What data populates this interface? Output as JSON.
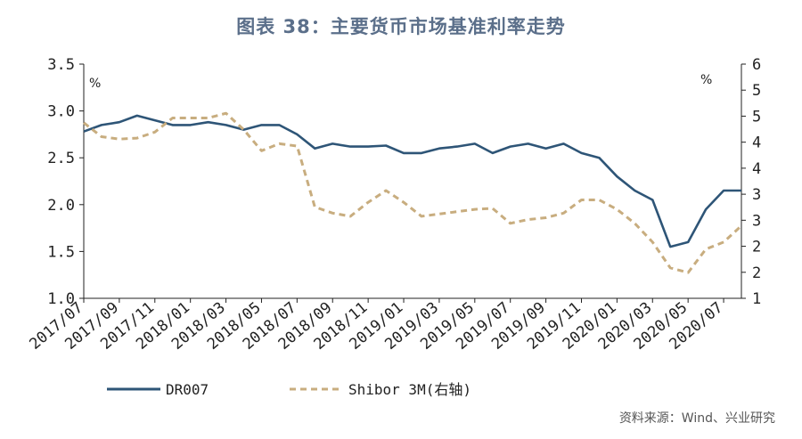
{
  "chart_data": {
    "type": "line",
    "title": "图表 38：主要货币市场基准利率走势",
    "left_unit": "%",
    "right_unit": "%",
    "x_tick_labels": [
      "2017/07",
      "2017/09",
      "2017/11",
      "2018/01",
      "2018/03",
      "2018/05",
      "2018/07",
      "2018/09",
      "2018/11",
      "2019/01",
      "2019/03",
      "2019/05",
      "2019/07",
      "2019/09",
      "2019/11",
      "2020/01",
      "2020/03",
      "2020/05",
      "2020/07"
    ],
    "y_left": {
      "ticks": [
        "1.0",
        "1.5",
        "2.0",
        "2.5",
        "3.0",
        "3.5"
      ],
      "lim": [
        1.0,
        3.5
      ]
    },
    "y_right": {
      "ticks": [
        "1",
        "2",
        "2",
        "3",
        "3",
        "4",
        "4",
        "5",
        "5",
        "6"
      ],
      "lim": [
        1.0,
        6.0
      ]
    },
    "x_range": [
      "2017-07",
      "2020-08"
    ],
    "series": [
      {
        "name": "DR007",
        "axis": "left",
        "color": "#2e5577",
        "style": "solid",
        "points": [
          [
            "2017-07",
            2.78
          ],
          [
            "2017-08",
            2.85
          ],
          [
            "2017-09",
            2.88
          ],
          [
            "2017-10",
            2.95
          ],
          [
            "2017-11",
            2.9
          ],
          [
            "2017-12",
            2.85
          ],
          [
            "2018-01",
            2.85
          ],
          [
            "2018-02",
            2.88
          ],
          [
            "2018-03",
            2.85
          ],
          [
            "2018-04",
            2.8
          ],
          [
            "2018-05",
            2.85
          ],
          [
            "2018-06",
            2.85
          ],
          [
            "2018-07",
            2.75
          ],
          [
            "2018-08",
            2.6
          ],
          [
            "2018-09",
            2.65
          ],
          [
            "2018-10",
            2.62
          ],
          [
            "2018-11",
            2.62
          ],
          [
            "2018-12",
            2.63
          ],
          [
            "2019-01",
            2.55
          ],
          [
            "2019-02",
            2.55
          ],
          [
            "2019-03",
            2.6
          ],
          [
            "2019-04",
            2.62
          ],
          [
            "2019-05",
            2.65
          ],
          [
            "2019-06",
            2.55
          ],
          [
            "2019-07",
            2.62
          ],
          [
            "2019-08",
            2.65
          ],
          [
            "2019-09",
            2.6
          ],
          [
            "2019-10",
            2.65
          ],
          [
            "2019-11",
            2.55
          ],
          [
            "2019-12",
            2.5
          ],
          [
            "2020-01",
            2.3
          ],
          [
            "2020-02",
            2.15
          ],
          [
            "2020-03",
            2.05
          ],
          [
            "2020-04",
            1.55
          ],
          [
            "2020-05",
            1.6
          ],
          [
            "2020-06",
            1.95
          ],
          [
            "2020-07",
            2.15
          ],
          [
            "2020-08",
            2.15
          ]
        ]
      },
      {
        "name": "Shibor 3M(右轴)",
        "axis": "right",
        "color": "#c8ad7f",
        "style": "dashed",
        "points": [
          [
            "2017-07",
            4.75
          ],
          [
            "2017-08",
            4.45
          ],
          [
            "2017-09",
            4.4
          ],
          [
            "2017-10",
            4.42
          ],
          [
            "2017-11",
            4.55
          ],
          [
            "2017-12",
            4.85
          ],
          [
            "2018-01",
            4.85
          ],
          [
            "2018-02",
            4.85
          ],
          [
            "2018-03",
            4.95
          ],
          [
            "2018-04",
            4.6
          ],
          [
            "2018-05",
            4.15
          ],
          [
            "2018-06",
            4.3
          ],
          [
            "2018-07",
            4.25
          ],
          [
            "2018-08",
            2.95
          ],
          [
            "2018-09",
            2.82
          ],
          [
            "2018-10",
            2.75
          ],
          [
            "2018-11",
            3.05
          ],
          [
            "2018-12",
            3.3
          ],
          [
            "2019-01",
            3.05
          ],
          [
            "2019-02",
            2.75
          ],
          [
            "2019-03",
            2.8
          ],
          [
            "2019-04",
            2.85
          ],
          [
            "2019-05",
            2.9
          ],
          [
            "2019-06",
            2.92
          ],
          [
            "2019-07",
            2.6
          ],
          [
            "2019-08",
            2.68
          ],
          [
            "2019-09",
            2.72
          ],
          [
            "2019-10",
            2.82
          ],
          [
            "2019-11",
            3.1
          ],
          [
            "2019-12",
            3.1
          ],
          [
            "2020-01",
            2.9
          ],
          [
            "2020-02",
            2.6
          ],
          [
            "2020-03",
            2.2
          ],
          [
            "2020-04",
            1.65
          ],
          [
            "2020-05",
            1.55
          ],
          [
            "2020-06",
            2.05
          ],
          [
            "2020-07",
            2.2
          ],
          [
            "2020-08",
            2.55
          ]
        ]
      }
    ],
    "legend_placement": "bottom-left",
    "grid": false
  },
  "source_note": "资料来源：Wind、兴业研究"
}
